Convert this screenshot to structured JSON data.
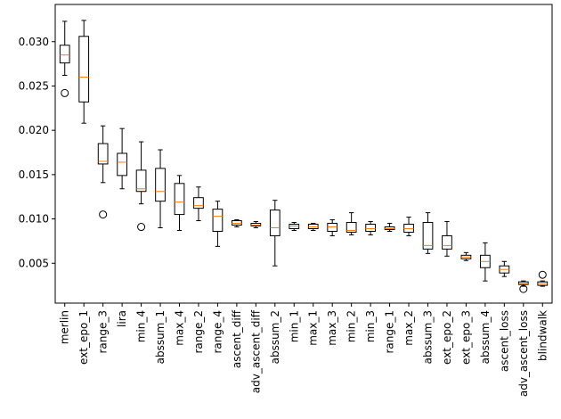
{
  "chart_data": {
    "type": "box",
    "title": "",
    "xlabel": "",
    "ylabel": "",
    "ylim": [
      0.0005,
      0.0342
    ],
    "yticks": [
      0.005,
      0.01,
      0.015,
      0.02,
      0.025,
      0.03
    ],
    "ytick_labels": [
      "0.005",
      "0.010",
      "0.015",
      "0.020",
      "0.025",
      "0.030"
    ],
    "grid": false,
    "colors": {
      "box": "#000000",
      "median": "#ff7f0e"
    },
    "categories": [
      "merlin",
      "ext_epo_1",
      "range_3",
      "lira",
      "min_4",
      "abssum_1",
      "max_4",
      "range_2",
      "range_4",
      "ascent_diff",
      "adv_ascent_diff",
      "abssum_2",
      "min_1",
      "max_1",
      "max_3",
      "min_2",
      "min_3",
      "range_1",
      "max_2",
      "abssum_3",
      "ext_epo_2",
      "ext_epo_3",
      "abssum_4",
      "ascent_loss",
      "adv_ascent_loss",
      "blindwalk"
    ],
    "boxes": [
      {
        "whislo": 0.0262,
        "q1": 0.0276,
        "med": 0.0285,
        "q3": 0.0296,
        "whishi": 0.0323,
        "fliers": [
          0.0242
        ]
      },
      {
        "whislo": 0.0208,
        "q1": 0.0232,
        "med": 0.026,
        "q3": 0.0306,
        "whishi": 0.0324,
        "fliers": []
      },
      {
        "whislo": 0.0141,
        "q1": 0.0162,
        "med": 0.0165,
        "q3": 0.0185,
        "whishi": 0.0205,
        "fliers": [
          0.0105
        ]
      },
      {
        "whislo": 0.0134,
        "q1": 0.0149,
        "med": 0.0164,
        "q3": 0.0174,
        "whishi": 0.0202,
        "fliers": []
      },
      {
        "whislo": 0.0117,
        "q1": 0.0131,
        "med": 0.0134,
        "q3": 0.0155,
        "whishi": 0.0187,
        "fliers": [
          0.0091
        ]
      },
      {
        "whislo": 0.009,
        "q1": 0.012,
        "med": 0.0131,
        "q3": 0.0157,
        "whishi": 0.0178,
        "fliers": []
      },
      {
        "whislo": 0.0087,
        "q1": 0.0105,
        "med": 0.0119,
        "q3": 0.014,
        "whishi": 0.0149,
        "fliers": []
      },
      {
        "whislo": 0.0098,
        "q1": 0.0112,
        "med": 0.0115,
        "q3": 0.0124,
        "whishi": 0.0136,
        "fliers": []
      },
      {
        "whislo": 0.0069,
        "q1": 0.0086,
        "med": 0.0103,
        "q3": 0.0111,
        "whishi": 0.012,
        "fliers": []
      },
      {
        "whislo": 0.0091,
        "q1": 0.0093,
        "med": 0.0095,
        "q3": 0.0098,
        "whishi": 0.0099,
        "fliers": []
      },
      {
        "whislo": 0.009,
        "q1": 0.0092,
        "med": 0.0093,
        "q3": 0.0095,
        "whishi": 0.0097,
        "fliers": []
      },
      {
        "whislo": 0.0047,
        "q1": 0.0081,
        "med": 0.009,
        "q3": 0.011,
        "whishi": 0.0121,
        "fliers": []
      },
      {
        "whislo": 0.0087,
        "q1": 0.0089,
        "med": 0.0092,
        "q3": 0.0094,
        "whishi": 0.0096,
        "fliers": []
      },
      {
        "whislo": 0.0087,
        "q1": 0.0089,
        "med": 0.0091,
        "q3": 0.0094,
        "whishi": 0.0095,
        "fliers": []
      },
      {
        "whislo": 0.0081,
        "q1": 0.0086,
        "med": 0.0091,
        "q3": 0.0095,
        "whishi": 0.0099,
        "fliers": []
      },
      {
        "whislo": 0.0082,
        "q1": 0.0085,
        "med": 0.0087,
        "q3": 0.0096,
        "whishi": 0.0107,
        "fliers": []
      },
      {
        "whislo": 0.0082,
        "q1": 0.0086,
        "med": 0.0089,
        "q3": 0.0094,
        "whishi": 0.0097,
        "fliers": []
      },
      {
        "whislo": 0.0086,
        "q1": 0.0088,
        "med": 0.0089,
        "q3": 0.0091,
        "whishi": 0.0095,
        "fliers": []
      },
      {
        "whislo": 0.0081,
        "q1": 0.0085,
        "med": 0.0089,
        "q3": 0.0094,
        "whishi": 0.0102,
        "fliers": []
      },
      {
        "whislo": 0.0061,
        "q1": 0.0066,
        "med": 0.007,
        "q3": 0.0096,
        "whishi": 0.0107,
        "fliers": []
      },
      {
        "whislo": 0.0058,
        "q1": 0.0066,
        "med": 0.007,
        "q3": 0.0081,
        "whishi": 0.0097,
        "fliers": []
      },
      {
        "whislo": 0.0053,
        "q1": 0.0055,
        "med": 0.0057,
        "q3": 0.0059,
        "whishi": 0.0062,
        "fliers": []
      },
      {
        "whislo": 0.003,
        "q1": 0.0045,
        "med": 0.0052,
        "q3": 0.0059,
        "whishi": 0.0073,
        "fliers": []
      },
      {
        "whislo": 0.0035,
        "q1": 0.0039,
        "med": 0.0043,
        "q3": 0.0047,
        "whishi": 0.0052,
        "fliers": []
      },
      {
        "whislo": 0.0024,
        "q1": 0.0026,
        "med": 0.0027,
        "q3": 0.0029,
        "whishi": 0.003,
        "fliers": [
          0.0021
        ]
      },
      {
        "whislo": 0.0024,
        "q1": 0.0025,
        "med": 0.0027,
        "q3": 0.0029,
        "whishi": 0.003,
        "fliers": [
          0.0037
        ]
      }
    ]
  }
}
